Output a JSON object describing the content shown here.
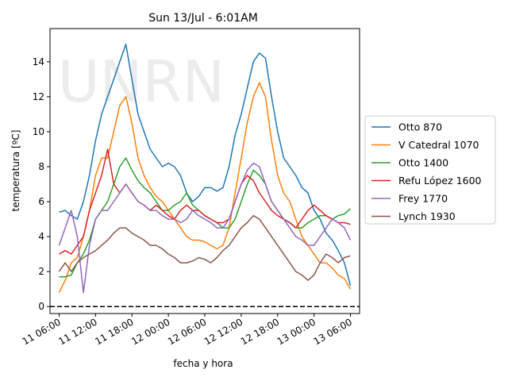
{
  "chart_data": {
    "type": "line",
    "title": "Sun 13/Jul - 6:01AM",
    "xlabel": "fecha y hora",
    "ylabel": "temperatura [ºC]",
    "x_ticks": [
      "11 06:00",
      "11 12:00",
      "11 18:00",
      "12 00:00",
      "12 06:00",
      "12 12:00",
      "12 18:00",
      "13 00:00",
      "13 06:00"
    ],
    "x_unit": "hours since 11 06:00",
    "xlim": [
      -1.5,
      49.5
    ],
    "ylim": [
      -0.4,
      15.9
    ],
    "y_ticks": [
      0,
      2,
      4,
      6,
      8,
      10,
      12,
      14
    ],
    "reference_line": {
      "y": 0,
      "style": "dashed",
      "color": "#000000"
    },
    "watermark": "UNRN",
    "legend_position": "outside-right",
    "series": [
      {
        "name": "Otto 870",
        "color": "#1f77b4",
        "x": [
          0,
          1,
          2,
          3,
          4,
          5,
          6,
          7,
          8,
          9,
          10,
          11,
          12,
          13,
          14,
          15,
          16,
          17,
          18,
          19,
          20,
          21,
          22,
          23,
          24,
          25,
          26,
          27,
          28,
          29,
          30,
          31,
          32,
          33,
          34,
          35,
          36,
          37,
          38,
          39,
          40,
          41,
          42,
          43,
          44,
          45,
          46,
          47,
          48
        ],
        "y": [
          5.4,
          5.5,
          5.2,
          5.0,
          6.0,
          7.5,
          9.5,
          11.0,
          12.0,
          13.0,
          14.0,
          15.0,
          13.0,
          11.0,
          10.0,
          9.0,
          8.5,
          8.0,
          8.2,
          8.0,
          7.5,
          6.5,
          6.0,
          6.3,
          6.8,
          6.8,
          6.6,
          6.8,
          8.0,
          9.8,
          11.0,
          12.5,
          14.0,
          14.5,
          14.2,
          12.0,
          10.0,
          8.5,
          8.0,
          7.5,
          6.8,
          6.5,
          5.5,
          5.0,
          4.2,
          3.8,
          3.2,
          2.5,
          1.2
        ]
      },
      {
        "name": "V Catedral 1070",
        "color": "#ff7f0e",
        "x": [
          0,
          1,
          2,
          3,
          4,
          5,
          6,
          7,
          8,
          9,
          10,
          11,
          12,
          13,
          14,
          15,
          16,
          17,
          18,
          19,
          20,
          21,
          22,
          23,
          24,
          25,
          26,
          27,
          28,
          29,
          30,
          31,
          32,
          33,
          34,
          35,
          36,
          37,
          38,
          39,
          40,
          41,
          42,
          43,
          44,
          45,
          46,
          47,
          48
        ],
        "y": [
          0.8,
          1.5,
          2.5,
          2.8,
          4.0,
          5.5,
          7.5,
          8.5,
          8.5,
          10.0,
          11.5,
          12.0,
          10.5,
          8.5,
          7.5,
          6.8,
          6.3,
          6.0,
          5.5,
          5.0,
          4.5,
          4.0,
          3.8,
          3.8,
          3.7,
          3.5,
          3.3,
          3.5,
          4.5,
          6.5,
          8.5,
          10.5,
          12.0,
          12.8,
          12.0,
          9.5,
          7.5,
          6.5,
          6.0,
          5.0,
          4.0,
          3.5,
          3.0,
          2.5,
          2.5,
          2.2,
          1.8,
          1.6,
          1.0
        ]
      },
      {
        "name": "Otto 1400",
        "color": "#2ca02c",
        "x": [
          0,
          1,
          2,
          3,
          4,
          5,
          6,
          7,
          8,
          9,
          10,
          11,
          12,
          13,
          14,
          15,
          16,
          17,
          18,
          19,
          20,
          21,
          22,
          23,
          24,
          25,
          26,
          27,
          28,
          29,
          30,
          31,
          32,
          33,
          34,
          35,
          36,
          37,
          38,
          39,
          40,
          41,
          42,
          43,
          44,
          45,
          46,
          47,
          48
        ],
        "y": [
          1.7,
          1.7,
          1.8,
          2.5,
          3.0,
          3.8,
          5.0,
          5.5,
          6.0,
          7.0,
          8.0,
          8.5,
          7.8,
          7.2,
          6.8,
          6.5,
          6.0,
          5.5,
          5.5,
          5.8,
          6.0,
          6.5,
          5.8,
          5.5,
          5.2,
          5.0,
          4.8,
          4.5,
          4.5,
          5.0,
          6.0,
          7.0,
          7.8,
          7.5,
          7.0,
          6.0,
          5.5,
          5.0,
          4.8,
          4.5,
          4.5,
          4.8,
          5.0,
          5.2,
          5.2,
          5.0,
          5.2,
          5.3,
          5.6
        ]
      },
      {
        "name": "Refu López 1600",
        "color": "#d62728",
        "x": [
          0,
          1,
          2,
          3,
          4,
          5,
          6,
          7,
          8,
          9,
          10,
          11,
          12,
          13,
          14,
          15,
          16,
          17,
          18,
          19,
          20,
          21,
          22,
          23,
          24,
          25,
          26,
          27,
          28,
          29,
          30,
          31,
          32,
          33,
          34,
          35,
          36,
          37,
          38,
          39,
          40,
          41,
          42,
          43,
          44,
          45,
          46,
          47,
          48
        ],
        "y": [
          3.0,
          3.2,
          3.0,
          3.5,
          4.0,
          5.5,
          6.5,
          7.5,
          9.0,
          7.0,
          6.5,
          7.0,
          6.5,
          6.0,
          5.8,
          5.5,
          5.8,
          5.5,
          5.2,
          5.0,
          5.5,
          5.8,
          5.5,
          5.5,
          5.2,
          5.0,
          4.8,
          4.8,
          5.0,
          6.0,
          7.0,
          7.5,
          7.2,
          6.5,
          6.0,
          5.5,
          5.2,
          5.0,
          4.8,
          4.5,
          5.0,
          5.5,
          5.8,
          5.5,
          5.2,
          5.0,
          4.8,
          4.8,
          4.7
        ]
      },
      {
        "name": "Frey 1770",
        "color": "#9467bd",
        "x": [
          0,
          1,
          2,
          3,
          4,
          5,
          6,
          7,
          8,
          9,
          10,
          11,
          12,
          13,
          14,
          15,
          16,
          17,
          18,
          19,
          20,
          21,
          22,
          23,
          24,
          25,
          26,
          27,
          28,
          29,
          30,
          31,
          32,
          33,
          34,
          35,
          36,
          37,
          38,
          39,
          40,
          41,
          42,
          43,
          44,
          45,
          46,
          47,
          48
        ],
        "y": [
          3.5,
          4.5,
          5.5,
          4.0,
          0.8,
          3.5,
          5.0,
          5.5,
          5.5,
          6.0,
          6.5,
          7.0,
          6.5,
          6.0,
          5.8,
          5.5,
          5.5,
          5.2,
          5.0,
          5.0,
          4.8,
          5.0,
          5.5,
          5.2,
          5.0,
          4.8,
          4.5,
          4.5,
          5.0,
          6.0,
          7.0,
          7.8,
          8.2,
          8.0,
          7.0,
          6.0,
          5.5,
          5.0,
          4.5,
          4.0,
          3.8,
          3.5,
          3.5,
          4.0,
          4.5,
          5.0,
          4.8,
          4.5,
          3.8
        ]
      },
      {
        "name": "Lynch 1930",
        "color": "#8c564b",
        "x": [
          0,
          1,
          2,
          3,
          4,
          5,
          6,
          7,
          8,
          9,
          10,
          11,
          12,
          13,
          14,
          15,
          16,
          17,
          18,
          19,
          20,
          21,
          22,
          23,
          24,
          25,
          26,
          27,
          28,
          29,
          30,
          31,
          32,
          33,
          34,
          35,
          36,
          37,
          38,
          39,
          40,
          41,
          42,
          43,
          44,
          45,
          46,
          47,
          48
        ],
        "y": [
          2.0,
          2.5,
          2.0,
          2.5,
          2.8,
          3.0,
          3.2,
          3.5,
          3.8,
          4.2,
          4.5,
          4.5,
          4.2,
          4.0,
          3.8,
          3.5,
          3.5,
          3.3,
          3.0,
          2.8,
          2.5,
          2.5,
          2.6,
          2.8,
          2.7,
          2.5,
          2.8,
          3.2,
          3.5,
          4.0,
          4.5,
          4.8,
          5.2,
          5.0,
          4.5,
          4.0,
          3.5,
          3.0,
          2.5,
          2.0,
          1.8,
          1.5,
          1.8,
          2.5,
          3.0,
          2.8,
          2.5,
          2.8,
          2.9
        ]
      }
    ]
  }
}
